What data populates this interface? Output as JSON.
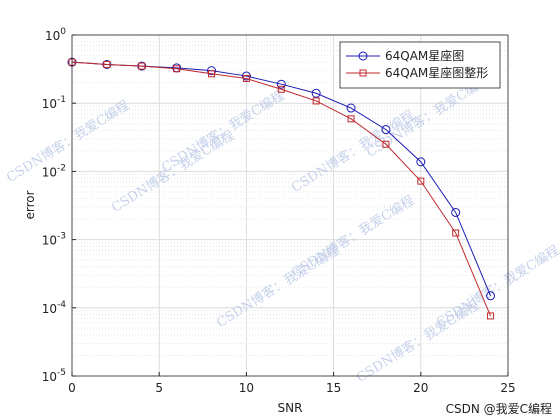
{
  "chart_data": {
    "type": "line",
    "x_label": "SNR",
    "y_label": "error",
    "x": [
      0,
      2,
      4,
      6,
      8,
      10,
      12,
      14,
      16,
      18,
      20,
      22,
      24
    ],
    "series": [
      {
        "name": "64QAM星座图",
        "color": "#1c1cb4",
        "marker": "circle",
        "values": [
          0.4,
          0.37,
          0.35,
          0.33,
          0.3,
          0.25,
          0.19,
          0.14,
          0.085,
          0.041,
          0.0138,
          0.0025,
          0.00015
        ]
      },
      {
        "name": "64QAM星座图整形",
        "color": "#c0282d",
        "marker": "square",
        "values": [
          0.4,
          0.37,
          0.35,
          0.32,
          0.27,
          0.23,
          0.16,
          0.108,
          0.059,
          0.025,
          0.0072,
          0.00125,
          7.6e-05
        ]
      }
    ],
    "xlim": [
      0,
      25
    ],
    "xticks": [
      0,
      5,
      10,
      15,
      20,
      25
    ],
    "ylim": [
      1e-05,
      1
    ],
    "log_y": true,
    "yticks": [
      {
        "value": 1e-05,
        "label": "10",
        "exponent": "-5"
      },
      {
        "value": 0.0001,
        "label": "10",
        "exponent": "-4"
      },
      {
        "value": 0.001,
        "label": "10",
        "exponent": "-3"
      },
      {
        "value": 0.01,
        "label": "10",
        "exponent": "-2"
      },
      {
        "value": 0.1,
        "label": "10",
        "exponent": "-1"
      },
      {
        "value": 1,
        "label": "10",
        "exponent": "0"
      }
    ],
    "grid": true,
    "minor_grid": true,
    "legend": "northeast",
    "watermark": "CSDN博客：我爱C编程",
    "credit": "CSDN @我爱C编程"
  }
}
